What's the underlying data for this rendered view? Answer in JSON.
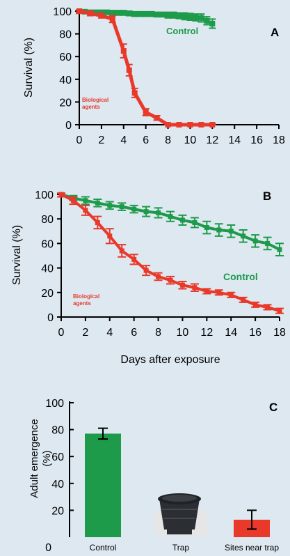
{
  "chart_data": [
    {
      "type": "line",
      "panel_label": "A",
      "xlabel": "",
      "ylabel": "Survival (%)",
      "xlim": [
        0,
        18
      ],
      "ylim": [
        0,
        100
      ],
      "xticks": [
        0,
        2,
        4,
        6,
        8,
        10,
        12,
        14,
        16,
        18
      ],
      "yticks": [
        0,
        20,
        40,
        60,
        80,
        100
      ],
      "series": [
        {
          "name": "Control",
          "color": "#1e9a4b",
          "x": [
            0,
            0.5,
            1,
            1.5,
            2,
            2.5,
            3,
            3.5,
            4,
            4.5,
            5,
            5.5,
            6,
            6.5,
            7,
            7.5,
            8,
            8.5,
            9,
            9.5,
            10,
            10.5,
            11,
            11.5,
            12
          ],
          "y": [
            100,
            99.5,
            99,
            99,
            99,
            99,
            98.5,
            98.5,
            98.5,
            98,
            97.5,
            97.5,
            97.5,
            97.5,
            97,
            97,
            96.5,
            96.5,
            96,
            95.5,
            95,
            94.5,
            94,
            91.5,
            89
          ],
          "err": [
            1,
            1,
            1.5,
            1.5,
            1.5,
            1.5,
            2,
            2,
            2,
            2,
            2,
            2,
            2,
            2,
            2,
            2,
            2.5,
            2.5,
            2.5,
            3,
            3,
            3,
            3.5,
            3.5,
            4
          ]
        },
        {
          "name": "Biological agents",
          "label": [
            "Biological",
            "agents"
          ],
          "color": "#e8392a",
          "x": [
            0,
            1,
            2,
            3,
            4,
            4.5,
            5,
            6,
            7,
            8,
            9,
            10,
            11,
            12
          ],
          "y": [
            100,
            98,
            96,
            93,
            65,
            48,
            28,
            11,
            6,
            0,
            0,
            0,
            0,
            0
          ],
          "err": [
            2,
            2,
            2,
            3,
            6,
            5,
            4,
            3,
            2,
            1,
            1,
            1,
            1,
            1
          ]
        }
      ]
    },
    {
      "type": "line",
      "panel_label": "B",
      "xlabel": "Days after exposure",
      "ylabel": "Survival (%)",
      "xlim": [
        0,
        18
      ],
      "ylim": [
        0,
        100
      ],
      "xticks": [
        0,
        2,
        4,
        6,
        8,
        10,
        12,
        14,
        16,
        18
      ],
      "yticks": [
        0,
        20,
        40,
        60,
        80,
        100
      ],
      "series": [
        {
          "name": "Control",
          "color": "#1e9a4b",
          "x": [
            0,
            1,
            2,
            3,
            4,
            5,
            6,
            7,
            8,
            9,
            10,
            11,
            12,
            13,
            14,
            15,
            16,
            17,
            18
          ],
          "y": [
            100,
            97,
            95,
            93,
            91,
            90,
            88,
            86,
            85,
            82,
            79,
            77,
            73,
            71,
            70,
            66,
            62,
            60,
            55
          ],
          "err": [
            2,
            2,
            3,
            3,
            3,
            3,
            3,
            4,
            4,
            4,
            4,
            4,
            5,
            5,
            5,
            5,
            5,
            5,
            5
          ]
        },
        {
          "name": "Biological agents",
          "label": [
            "Biological",
            "agents"
          ],
          "color": "#e8392a",
          "x": [
            0,
            1,
            2,
            3,
            4,
            5,
            6,
            7,
            8,
            9,
            10,
            11,
            12,
            13,
            14,
            15,
            16,
            17,
            18
          ],
          "y": [
            100,
            95,
            87,
            77,
            66,
            54,
            47,
            38,
            33,
            30,
            26,
            24,
            21,
            20,
            18,
            14,
            10,
            8,
            5
          ],
          "err": [
            2,
            3,
            4,
            5,
            6,
            5,
            4,
            4,
            3,
            3,
            3,
            3,
            2,
            2,
            2,
            2,
            2,
            2,
            2
          ]
        }
      ]
    },
    {
      "type": "bar",
      "panel_label": "C",
      "ylabel": [
        "Adult emergence",
        "(%)"
      ],
      "ylim": [
        0,
        100
      ],
      "yticks": [
        0,
        20,
        40,
        60,
        80,
        100
      ],
      "categories": [
        "Control",
        "Trap",
        "Sites near trap"
      ],
      "values": [
        77,
        0,
        13
      ],
      "err": [
        4,
        0,
        7
      ],
      "colors": [
        "#1e9a4b",
        "#2b2f33",
        "#e8392a"
      ]
    }
  ]
}
